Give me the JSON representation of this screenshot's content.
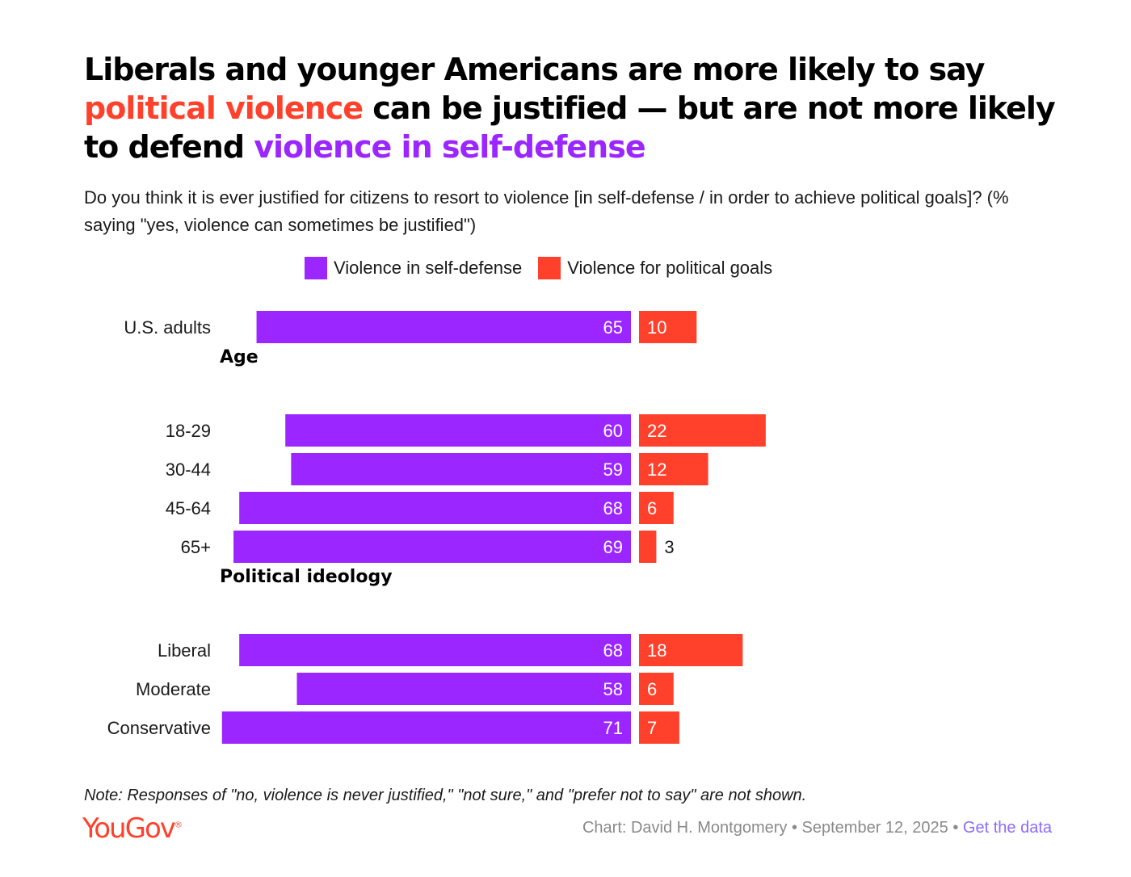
{
  "title": {
    "part1": "Liberals and younger Americans are more likely to say ",
    "highlight1": "political violence",
    "part2": " can be justified — but are not more likely to defend ",
    "highlight2": "violence in self-defense"
  },
  "subtitle": "Do you think it is ever justified for citizens to resort to violence [in self-defense / in order to achieve political goals]? (% saying \"yes, violence can sometimes be justified\")",
  "note": "Note: Responses of \"no, violence is never justified,\" \"not sure,\" and \"prefer not to say\" are not shown.",
  "footer": {
    "logo": "YouGov",
    "logo_mark": "®",
    "credit": "Chart: David H. Montgomery",
    "separator": "•",
    "date": "September 12, 2025",
    "link": "Get the data"
  },
  "colors": {
    "self_defense": "#9b26ff",
    "political": "#ff412c"
  },
  "chart_data": {
    "type": "bar",
    "orientation": "horizontal-diverging",
    "legend": [
      {
        "name": "Violence in self-defense",
        "color": "#9b26ff"
      },
      {
        "name": "Violence for political goals",
        "color": "#ff412c"
      }
    ],
    "groups": [
      {
        "heading": "",
        "rows": [
          {
            "label": "U.S. adults",
            "self_defense": 65,
            "political": 10
          }
        ]
      },
      {
        "heading": "Age",
        "rows": [
          {
            "label": "18-29",
            "self_defense": 60,
            "political": 22
          },
          {
            "label": "30-44",
            "self_defense": 59,
            "political": 12
          },
          {
            "label": "45-64",
            "self_defense": 68,
            "political": 6
          },
          {
            "label": "65+",
            "self_defense": 69,
            "political": 3
          }
        ]
      },
      {
        "heading": "Political ideology",
        "rows": [
          {
            "label": "Liberal",
            "self_defense": 68,
            "political": 18
          },
          {
            "label": "Moderate",
            "self_defense": 58,
            "political": 6
          },
          {
            "label": "Conservative",
            "self_defense": 71,
            "political": 7
          }
        ]
      }
    ],
    "unit": "%"
  }
}
